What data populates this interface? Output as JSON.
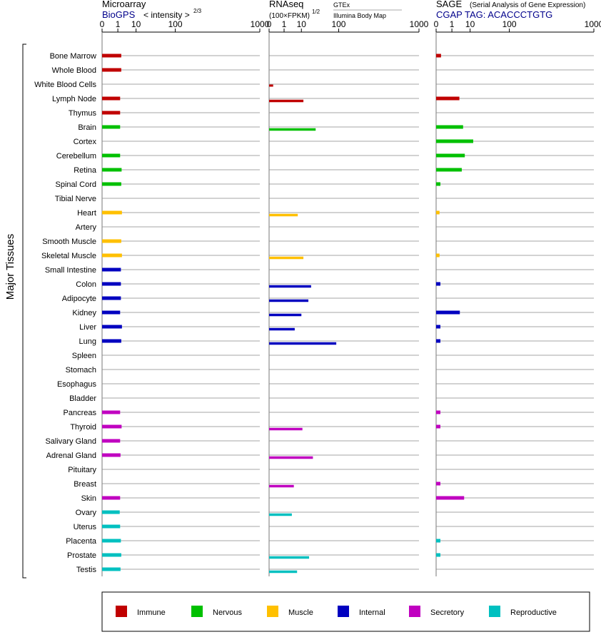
{
  "chart_data": {
    "type": "bar",
    "ylabel": "Major Tissues",
    "colors": {
      "Immune": "#c00000",
      "Nervous": "#00c000",
      "Muscle": "#ffc000",
      "Internal": "#0000c0",
      "Secretory": "#c000c0",
      "Reproductive": "#00c0c0"
    },
    "legend": [
      "Immune",
      "Nervous",
      "Muscle",
      "Internal",
      "Secretory",
      "Reproductive"
    ],
    "tissues": [
      {
        "name": "Bone Marrow",
        "group": "Immune"
      },
      {
        "name": "Whole Blood",
        "group": "Immune"
      },
      {
        "name": "White Blood Cells",
        "group": "Immune"
      },
      {
        "name": "Lymph Node",
        "group": "Immune"
      },
      {
        "name": "Thymus",
        "group": "Immune"
      },
      {
        "name": "Brain",
        "group": "Nervous"
      },
      {
        "name": "Cortex",
        "group": "Nervous"
      },
      {
        "name": "Cerebellum",
        "group": "Nervous"
      },
      {
        "name": "Retina",
        "group": "Nervous"
      },
      {
        "name": "Spinal Cord",
        "group": "Nervous"
      },
      {
        "name": "Tibial Nerve",
        "group": "Nervous"
      },
      {
        "name": "Heart",
        "group": "Muscle"
      },
      {
        "name": "Artery",
        "group": "Muscle"
      },
      {
        "name": "Smooth Muscle",
        "group": "Muscle"
      },
      {
        "name": "Skeletal Muscle",
        "group": "Muscle"
      },
      {
        "name": "Small Intestine",
        "group": "Internal"
      },
      {
        "name": "Colon",
        "group": "Internal"
      },
      {
        "name": "Adipocyte",
        "group": "Internal"
      },
      {
        "name": "Kidney",
        "group": "Internal"
      },
      {
        "name": "Liver",
        "group": "Internal"
      },
      {
        "name": "Lung",
        "group": "Internal"
      },
      {
        "name": "Spleen",
        "group": "Internal"
      },
      {
        "name": "Stomach",
        "group": "Internal"
      },
      {
        "name": "Esophagus",
        "group": "Internal"
      },
      {
        "name": "Bladder",
        "group": "Internal"
      },
      {
        "name": "Pancreas",
        "group": "Secretory"
      },
      {
        "name": "Thyroid",
        "group": "Secretory"
      },
      {
        "name": "Salivary Gland",
        "group": "Secretory"
      },
      {
        "name": "Adrenal Gland",
        "group": "Secretory"
      },
      {
        "name": "Pituitary",
        "group": "Secretory"
      },
      {
        "name": "Breast",
        "group": "Secretory"
      },
      {
        "name": "Skin",
        "group": "Secretory"
      },
      {
        "name": "Ovary",
        "group": "Reproductive"
      },
      {
        "name": "Uterus",
        "group": "Reproductive"
      },
      {
        "name": "Placenta",
        "group": "Reproductive"
      },
      {
        "name": "Prostate",
        "group": "Reproductive"
      },
      {
        "name": "Testis",
        "group": "Reproductive"
      }
    ],
    "panels": [
      {
        "key": "microarray",
        "title": "Microarray",
        "source": "BioGPS",
        "scale_label": "< intensity >",
        "scale_exponent": "2/3",
        "ticks": [
          0,
          1,
          10,
          100,
          1000
        ],
        "xlim": [
          0,
          1000
        ],
        "values": [
          1.8,
          1.8,
          null,
          1.5,
          1.5,
          1.5,
          null,
          1.5,
          1.9,
          1.8,
          null,
          2.0,
          null,
          1.8,
          2.0,
          1.7,
          1.7,
          1.7,
          1.5,
          2.0,
          1.8,
          null,
          null,
          null,
          null,
          1.5,
          1.9,
          1.5,
          1.6,
          null,
          null,
          1.5,
          1.4,
          1.5,
          1.7,
          1.8,
          1.6
        ]
      },
      {
        "key": "rnaseq",
        "title": "RNAseq",
        "scale_label": "(100×FPKM)",
        "scale_exponent": "1/2",
        "sources": [
          "GTEx",
          "Illumina Body Map"
        ],
        "ticks": [
          0,
          1,
          10,
          100,
          1000
        ],
        "xlim": [
          0,
          1000
        ],
        "values": [
          [
            null,
            null
          ],
          [
            null,
            null
          ],
          [
            0.02,
            null
          ],
          [
            null,
            12
          ],
          [
            null,
            null
          ],
          [
            null,
            30
          ],
          [
            null,
            null
          ],
          [
            null,
            null
          ],
          [
            null,
            null
          ],
          [
            null,
            null
          ],
          [
            null,
            null
          ],
          [
            null,
            7
          ],
          [
            null,
            null
          ],
          [
            null,
            null
          ],
          [
            null,
            12
          ],
          [
            null,
            null
          ],
          [
            null,
            22
          ],
          [
            null,
            18
          ],
          [
            null,
            10
          ],
          [
            null,
            5
          ],
          [
            null,
            90
          ],
          [
            null,
            null
          ],
          [
            null,
            null
          ],
          [
            null,
            null
          ],
          [
            null,
            null
          ],
          [
            null,
            null
          ],
          [
            null,
            11
          ],
          [
            null,
            null
          ],
          [
            null,
            25
          ],
          [
            null,
            null
          ],
          [
            null,
            4.5
          ],
          [
            null,
            null
          ],
          [
            null,
            3.5
          ],
          [
            null,
            null
          ],
          [
            null,
            null
          ],
          [
            null,
            19
          ],
          [
            null,
            6.5
          ]
        ]
      },
      {
        "key": "sage",
        "title": "SAGE",
        "subtitle": "(Serial Analysis of Gene Expression)",
        "source": "CGAP TAG: ACACCCTGTG",
        "ticks": [
          0,
          1,
          10,
          100,
          1000
        ],
        "xlim": [
          0,
          1000
        ],
        "values": [
          0.03,
          null,
          null,
          3.2,
          null,
          5.0,
          13.0,
          6.0,
          4.3,
          0.02,
          null,
          0.01,
          null,
          null,
          0.01,
          null,
          0.02,
          null,
          3.4,
          0.02,
          0.02,
          null,
          null,
          null,
          null,
          0.02,
          0.02,
          null,
          null,
          null,
          0.02,
          5.6,
          null,
          null,
          0.02,
          0.02,
          null
        ]
      }
    ]
  }
}
